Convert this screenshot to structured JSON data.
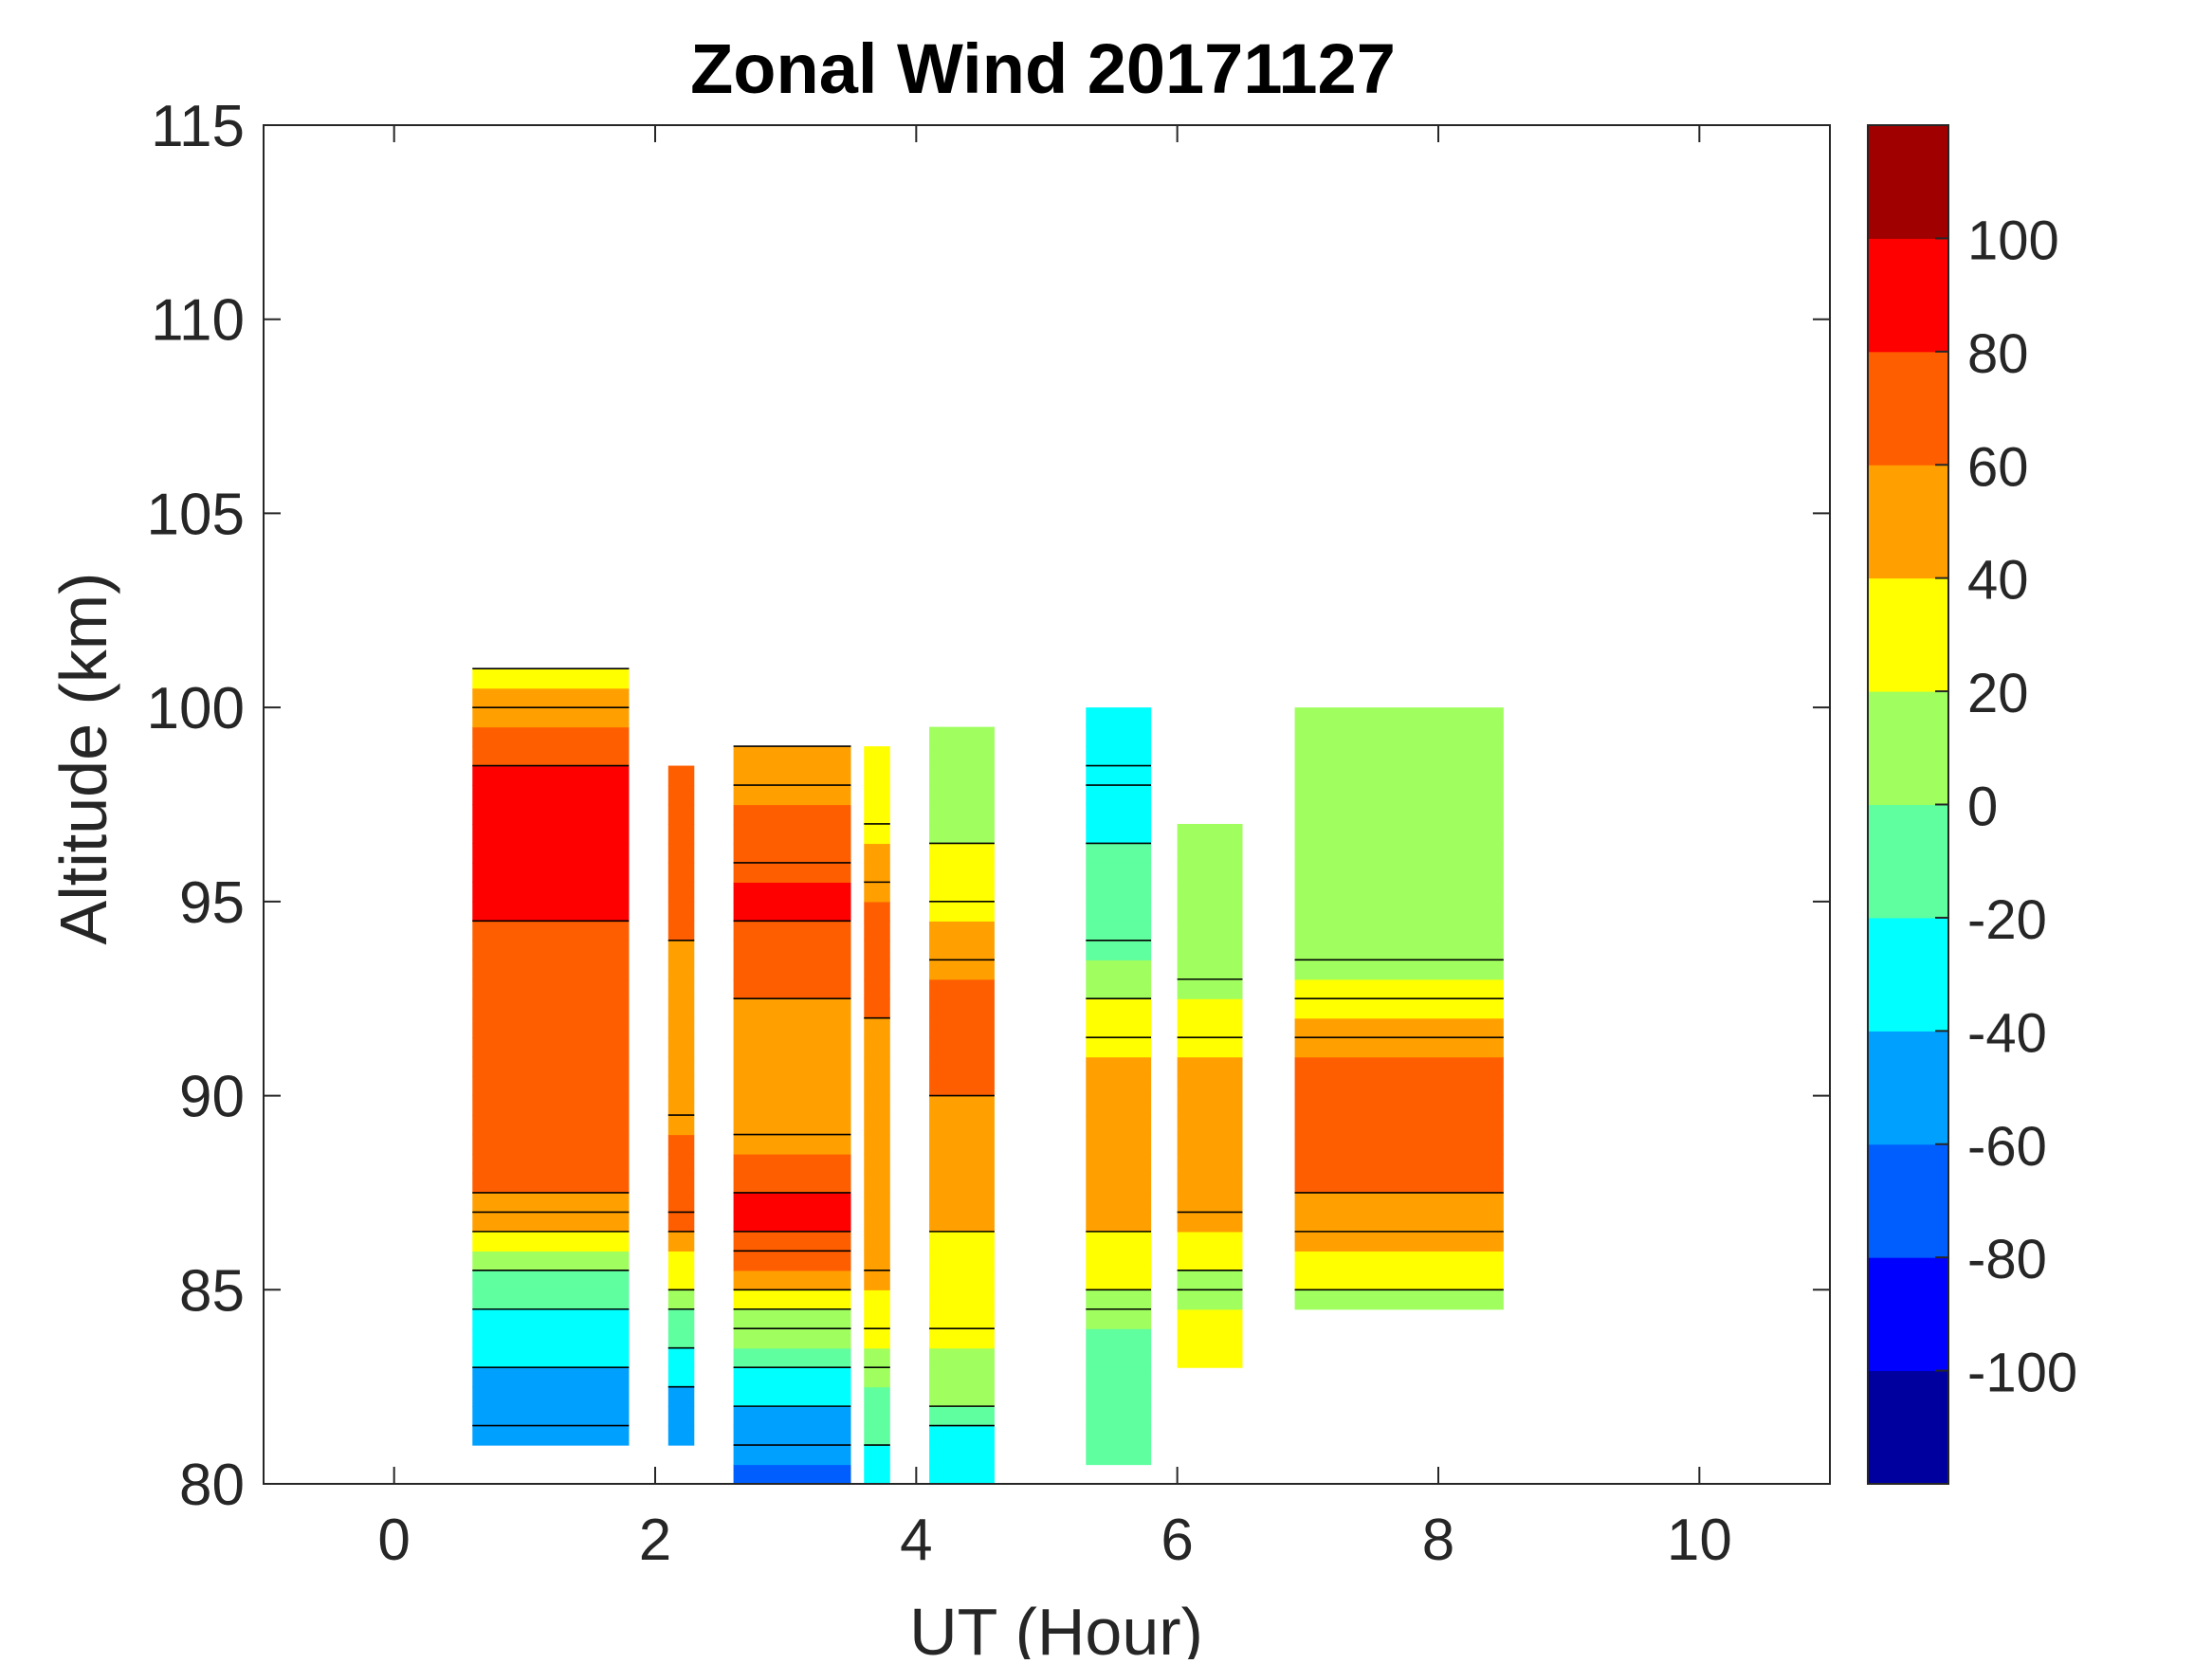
{
  "chart_data": {
    "type": "heatmap",
    "subtype": "filled-contour",
    "title": "Zonal Wind 20171127",
    "xlabel": "UT (Hour)",
    "ylabel": "Altitude (km)",
    "xlim": [
      -1,
      11
    ],
    "ylim": [
      80,
      115
    ],
    "xticks": [
      "0",
      "2",
      "4",
      "6",
      "8",
      "10"
    ],
    "yticks": [
      "80",
      "85",
      "90",
      "95",
      "100",
      "105",
      "110",
      "115"
    ],
    "grid": false,
    "colorbar": {
      "range": [
        -120,
        120
      ],
      "step": 20,
      "ticks": [
        "-100",
        "-80",
        "-60",
        "-40",
        "-20",
        "0",
        "20",
        "40",
        "60",
        "80",
        "100"
      ],
      "colors": [
        "#00009f",
        "#0000ff",
        "#005eff",
        "#00a0ff",
        "#00ffff",
        "#5fffa0",
        "#a0ff5f",
        "#ffff00",
        "#ffa000",
        "#ff5e00",
        "#ff0000",
        "#a00000"
      ]
    },
    "data_blocks": [
      {
        "x_range": [
          0.6,
          1.8
        ],
        "alt_range": [
          81,
          101
        ],
        "profile": [
          [
            81,
            -40
          ],
          [
            82,
            -50
          ],
          [
            83,
            -40
          ],
          [
            84,
            -30
          ],
          [
            85,
            -10
          ],
          [
            86,
            10
          ],
          [
            87,
            50
          ],
          [
            88,
            70
          ],
          [
            89,
            65
          ],
          [
            90,
            70
          ],
          [
            91,
            60
          ],
          [
            92,
            60
          ],
          [
            93,
            70
          ],
          [
            94,
            75
          ],
          [
            95,
            85
          ],
          [
            96,
            90
          ],
          [
            97,
            95
          ],
          [
            98,
            85
          ],
          [
            99,
            70
          ],
          [
            100,
            55
          ],
          [
            101,
            30
          ]
        ]
      },
      {
        "x_range": [
          2.1,
          2.3
        ],
        "alt_range": [
          81,
          98.5
        ],
        "profile": [
          [
            81,
            -60
          ],
          [
            82,
            -50
          ],
          [
            83,
            -30
          ],
          [
            84,
            -10
          ],
          [
            85,
            20
          ],
          [
            86,
            35
          ],
          [
            87,
            70
          ],
          [
            88,
            60
          ],
          [
            89,
            60
          ],
          [
            90,
            50
          ],
          [
            92,
            50
          ],
          [
            94,
            60
          ],
          [
            96,
            65
          ],
          [
            98,
            65
          ]
        ]
      },
      {
        "x_range": [
          2.6,
          3.5
        ],
        "alt_range": [
          80,
          99
        ],
        "profile": [
          [
            80,
            -70
          ],
          [
            81,
            -55
          ],
          [
            82,
            -40
          ],
          [
            83,
            -20
          ],
          [
            84,
            10
          ],
          [
            85,
            40
          ],
          [
            86,
            75
          ],
          [
            87,
            85
          ],
          [
            88,
            70
          ],
          [
            89,
            55
          ],
          [
            90,
            55
          ],
          [
            92,
            55
          ],
          [
            94,
            75
          ],
          [
            95,
            85
          ],
          [
            96,
            75
          ],
          [
            98,
            55
          ],
          [
            99,
            35
          ]
        ]
      },
      {
        "x_range": [
          3.6,
          3.8
        ],
        "alt_range": [
          80,
          99
        ],
        "profile": [
          [
            80,
            -30
          ],
          [
            82,
            -10
          ],
          [
            84,
            25
          ],
          [
            86,
            50
          ],
          [
            88,
            55
          ],
          [
            90,
            55
          ],
          [
            92,
            60
          ],
          [
            94,
            70
          ],
          [
            96,
            50
          ],
          [
            97,
            35
          ],
          [
            99,
            30
          ]
        ]
      },
      {
        "x_range": [
          4.1,
          4.6
        ],
        "alt_range": [
          80,
          99.5
        ],
        "profile": [
          [
            80,
            -40
          ],
          [
            81,
            -30
          ],
          [
            82,
            0
          ],
          [
            83,
            15
          ],
          [
            85,
            30
          ],
          [
            87,
            45
          ],
          [
            88,
            55
          ],
          [
            90,
            60
          ],
          [
            92,
            70
          ],
          [
            94,
            50
          ],
          [
            95,
            35
          ],
          [
            96,
            25
          ],
          [
            97,
            10
          ],
          [
            98,
            0
          ],
          [
            99.5,
            0
          ]
        ]
      },
      {
        "x_range": [
          5.3,
          5.8
        ],
        "alt_range": [
          80.5,
          100
        ],
        "profile": [
          [
            80.5,
            -10
          ],
          [
            82,
            -15
          ],
          [
            84,
            -5
          ],
          [
            85,
            20
          ],
          [
            86,
            35
          ],
          [
            87,
            45
          ],
          [
            88,
            55
          ],
          [
            89,
            50
          ],
          [
            90,
            50
          ],
          [
            91,
            40
          ],
          [
            92,
            25
          ],
          [
            93,
            10
          ],
          [
            94,
            -5
          ],
          [
            95,
            -10
          ],
          [
            96,
            -15
          ],
          [
            97,
            -30
          ],
          [
            98,
            -20
          ],
          [
            99,
            -40
          ],
          [
            100,
            -35
          ]
        ]
      },
      {
        "x_range": [
          6.0,
          6.5
        ],
        "alt_range": [
          83,
          97
        ],
        "profile": [
          [
            83,
            30
          ],
          [
            84,
            25
          ],
          [
            85,
            15
          ],
          [
            86,
            25
          ],
          [
            87,
            45
          ],
          [
            88,
            50
          ],
          [
            89,
            50
          ],
          [
            90,
            45
          ],
          [
            91,
            40
          ],
          [
            92,
            30
          ],
          [
            93,
            15
          ],
          [
            94,
            5
          ],
          [
            95,
            0
          ],
          [
            96,
            0
          ],
          [
            97,
            5
          ]
        ]
      },
      {
        "x_range": [
          6.9,
          8.5
        ],
        "alt_range": [
          84.5,
          100
        ],
        "profile": [
          [
            84.5,
            5
          ],
          [
            85,
            25
          ],
          [
            86,
            35
          ],
          [
            87,
            55
          ],
          [
            88,
            65
          ],
          [
            89,
            70
          ],
          [
            90,
            75
          ],
          [
            91,
            60
          ],
          [
            92,
            40
          ],
          [
            93,
            20
          ],
          [
            94,
            10
          ],
          [
            95,
            0
          ],
          [
            96,
            0
          ],
          [
            97,
            5
          ],
          [
            98,
            0
          ],
          [
            99,
            10
          ],
          [
            100,
            5
          ]
        ]
      }
    ]
  }
}
